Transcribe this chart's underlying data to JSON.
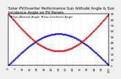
{
  "title": "Solar PV/Inverter Performance Sun Altitude Angle & Sun Incidence Angle on PV Panels",
  "legend": [
    "Sun Altitude Angle",
    "Sun Incidence Angle"
  ],
  "blue_color": "#0000dd",
  "red_color": "#dd0000",
  "bg_color": "#f0f0f0",
  "plot_bg": "#ffffff",
  "grid_color": "#aaaaaa",
  "ylim": [
    0,
    90
  ],
  "xlim": [
    0,
    100
  ],
  "yticks_right": [
    0,
    10,
    20,
    30,
    40,
    50,
    60,
    70,
    80,
    90
  ],
  "title_fontsize": 4.0,
  "tick_fontsize": 3.0,
  "legend_fontsize": 3.0,
  "marker_size": 0.8
}
